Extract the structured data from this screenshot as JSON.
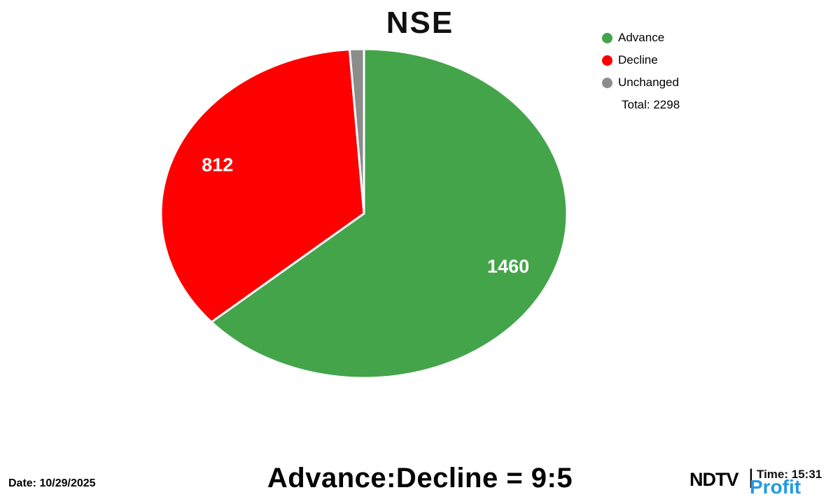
{
  "title": "NSE",
  "chart_data": {
    "type": "pie",
    "title": "NSE",
    "labels": [
      "Advance",
      "Decline",
      "Unchanged"
    ],
    "values": [
      1460,
      812,
      26
    ],
    "colors": [
      "#44a44a",
      "#fe0000",
      "#8c8c8c"
    ],
    "slice_value_labels": [
      "1460",
      "812",
      ""
    ],
    "total": 2298,
    "start_angle": "top",
    "direction": "clockwise",
    "legend_position": "upper-right"
  },
  "legend": {
    "items": [
      {
        "label": "Advance"
      },
      {
        "label": "Decline"
      },
      {
        "label": "Unchanged"
      }
    ],
    "total_label": "Total: 2298"
  },
  "footer": {
    "date": "Date: 10/29/2025",
    "ratio": "Advance:Decline = 9:5",
    "time": "Time: 15:31"
  },
  "branding": {
    "ndtv": "NDTV",
    "separator": "|",
    "profit": "Profit",
    "profit_color": "#2499e3",
    "ndtv_color": "#000000"
  }
}
